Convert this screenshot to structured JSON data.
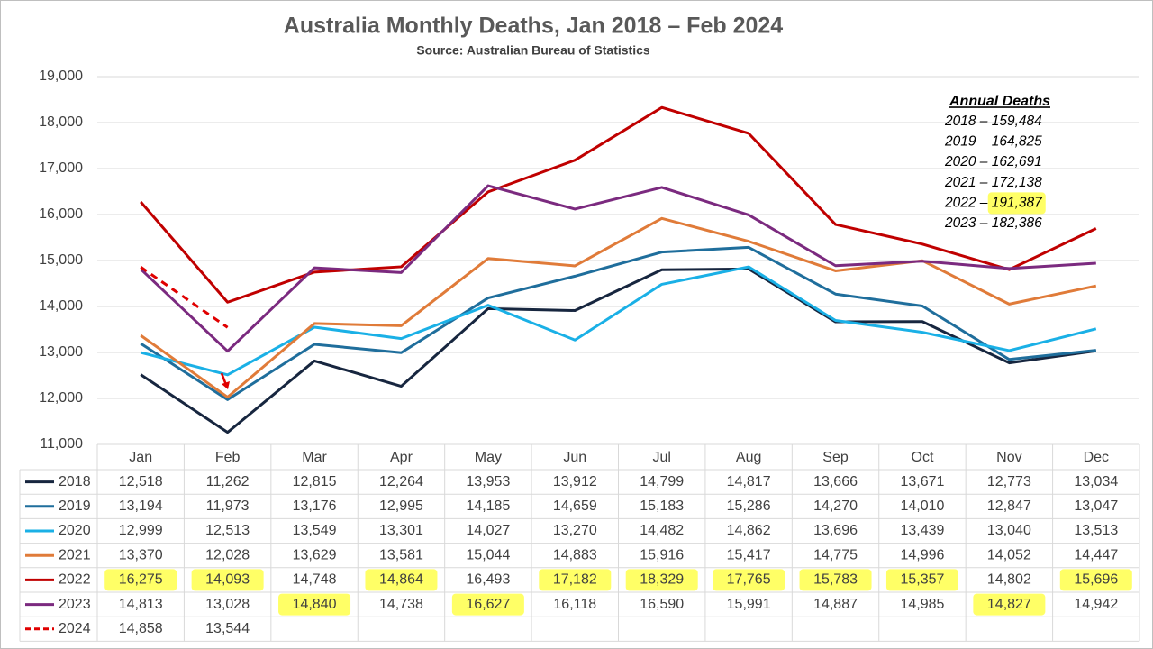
{
  "chart_data": {
    "type": "line",
    "title": "Australia Monthly Deaths, Jan 2018 – Feb 2024",
    "subtitle": "Source: Australian Bureau of Statistics",
    "categories": [
      "Jan",
      "Feb",
      "Mar",
      "Apr",
      "May",
      "Jun",
      "Jul",
      "Aug",
      "Sep",
      "Oct",
      "Nov",
      "Dec"
    ],
    "ylim": [
      11000,
      19000
    ],
    "yticks": [
      {
        "value": 11000,
        "label": "11,000"
      },
      {
        "value": 12000,
        "label": "12,000"
      },
      {
        "value": 13000,
        "label": "13,000"
      },
      {
        "value": 14000,
        "label": "14,000"
      },
      {
        "value": 15000,
        "label": "15,000"
      },
      {
        "value": 16000,
        "label": "16,000"
      },
      {
        "value": 17000,
        "label": "17,000"
      },
      {
        "value": 18000,
        "label": "18,000"
      },
      {
        "value": 19000,
        "label": "19,000"
      }
    ],
    "grid": true,
    "highlight_color": "#ffff66",
    "series": [
      {
        "name": "2018",
        "color": "#17263f",
        "dashed": false,
        "values": [
          12518,
          11262,
          12815,
          12264,
          13953,
          13912,
          14799,
          14817,
          13666,
          13671,
          12773,
          13034
        ],
        "value_labels": [
          "12,518",
          "11,262",
          "12,815",
          "12,264",
          "13,953",
          "13,912",
          "14,799",
          "14,817",
          "13,666",
          "13,671",
          "12,773",
          "13,034"
        ],
        "highlighted": [
          false,
          false,
          false,
          false,
          false,
          false,
          false,
          false,
          false,
          false,
          false,
          false
        ]
      },
      {
        "name": "2019",
        "color": "#1f6e9c",
        "dashed": false,
        "values": [
          13194,
          11973,
          13176,
          12995,
          14185,
          14659,
          15183,
          15286,
          14270,
          14010,
          12847,
          13047
        ],
        "value_labels": [
          "13,194",
          "11,973",
          "13,176",
          "12,995",
          "14,185",
          "14,659",
          "15,183",
          "15,286",
          "14,270",
          "14,010",
          "12,847",
          "13,047"
        ],
        "highlighted": [
          false,
          false,
          false,
          false,
          false,
          false,
          false,
          false,
          false,
          false,
          false,
          false
        ]
      },
      {
        "name": "2020",
        "color": "#1ab0e6",
        "dashed": false,
        "values": [
          12999,
          12513,
          13549,
          13301,
          14027,
          13270,
          14482,
          14862,
          13696,
          13439,
          13040,
          13513
        ],
        "value_labels": [
          "12,999",
          "12,513",
          "13,549",
          "13,301",
          "14,027",
          "13,270",
          "14,482",
          "14,862",
          "13,696",
          "13,439",
          "13,040",
          "13,513"
        ],
        "highlighted": [
          false,
          false,
          false,
          false,
          false,
          false,
          false,
          false,
          false,
          false,
          false,
          false
        ]
      },
      {
        "name": "2021",
        "color": "#e07b39",
        "dashed": false,
        "values": [
          13370,
          12028,
          13629,
          13581,
          15044,
          14883,
          15916,
          15417,
          14775,
          14996,
          14052,
          14447
        ],
        "value_labels": [
          "13,370",
          "12,028",
          "13,629",
          "13,581",
          "15,044",
          "14,883",
          "15,916",
          "15,417",
          "14,775",
          "14,996",
          "14,052",
          "14,447"
        ],
        "highlighted": [
          false,
          false,
          false,
          false,
          false,
          false,
          false,
          false,
          false,
          false,
          false,
          false
        ]
      },
      {
        "name": "2022",
        "color": "#c00000",
        "dashed": false,
        "values": [
          16275,
          14093,
          14748,
          14864,
          16493,
          17182,
          18329,
          17765,
          15783,
          15357,
          14802,
          15696
        ],
        "value_labels": [
          "16,275",
          "14,093",
          "14,748",
          "14,864",
          "16,493",
          "17,182",
          "18,329",
          "17,765",
          "15,783",
          "15,357",
          "14,802",
          "15,696"
        ],
        "highlighted": [
          true,
          true,
          false,
          true,
          false,
          true,
          true,
          true,
          true,
          true,
          false,
          true
        ]
      },
      {
        "name": "2023",
        "color": "#7b2a7f",
        "dashed": false,
        "values": [
          14813,
          13028,
          14840,
          14738,
          16627,
          16118,
          16590,
          15991,
          14887,
          14985,
          14827,
          14942
        ],
        "value_labels": [
          "14,813",
          "13,028",
          "14,840",
          "14,738",
          "16,627",
          "16,118",
          "16,590",
          "15,991",
          "14,887",
          "14,985",
          "14,827",
          "14,942"
        ],
        "highlighted": [
          false,
          false,
          true,
          false,
          true,
          false,
          false,
          false,
          false,
          false,
          true,
          false
        ]
      },
      {
        "name": "2024",
        "color": "#e00000",
        "dashed": true,
        "values": [
          14858,
          13544,
          null,
          null,
          null,
          null,
          null,
          null,
          null,
          null,
          null,
          null
        ],
        "value_labels": [
          "14,858",
          "13,544",
          null,
          null,
          null,
          null,
          null,
          null,
          null,
          null,
          null,
          null
        ],
        "highlighted": [
          false,
          false,
          false,
          false,
          false,
          false,
          false,
          false,
          false,
          false,
          false,
          false
        ]
      }
    ],
    "annual_deaths": {
      "title": "Annual Deaths",
      "entries": [
        {
          "text": "2018 – ",
          "total": "159,484",
          "highlighted": false
        },
        {
          "text": "2019 – ",
          "total": "164,825",
          "highlighted": false
        },
        {
          "text": "2020 – ",
          "total": "162,691",
          "highlighted": false
        },
        {
          "text": "2021 – ",
          "total": "172,138",
          "highlighted": false
        },
        {
          "text": "2022 – ",
          "total": "191,387",
          "highlighted": true
        },
        {
          "text": "2023 – ",
          "total": "182,386",
          "highlighted": false
        }
      ]
    }
  }
}
